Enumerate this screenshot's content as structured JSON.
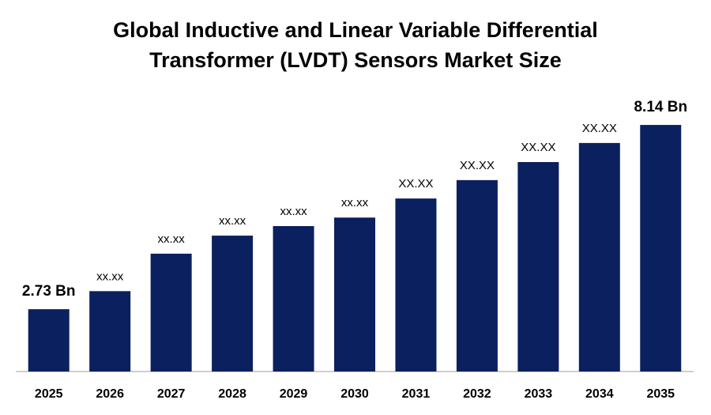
{
  "chart_data": {
    "type": "bar",
    "title": [
      "Global Inductive and Linear Variable Differential",
      "Transformer (LVDT) Sensors Market Size"
    ],
    "categories": [
      "2025",
      "2026",
      "2027",
      "2028",
      "2029",
      "2030",
      "2031",
      "2032",
      "2033",
      "2034",
      "2035"
    ],
    "values": [
      2.73,
      3.26,
      4.36,
      4.89,
      5.17,
      5.42,
      5.98,
      6.52,
      7.05,
      7.61,
      8.14
    ],
    "value_labels": [
      "2.73 Bn",
      "xx.xx",
      "xx.xx",
      "xx.xx",
      "xx.xx",
      "xx.xx",
      "XX.XX",
      "XX.XX",
      "XX.XX",
      "XX.XX",
      "8.14 Bn"
    ],
    "color": "#0b205e",
    "ylim": [
      0.9,
      9
    ]
  }
}
